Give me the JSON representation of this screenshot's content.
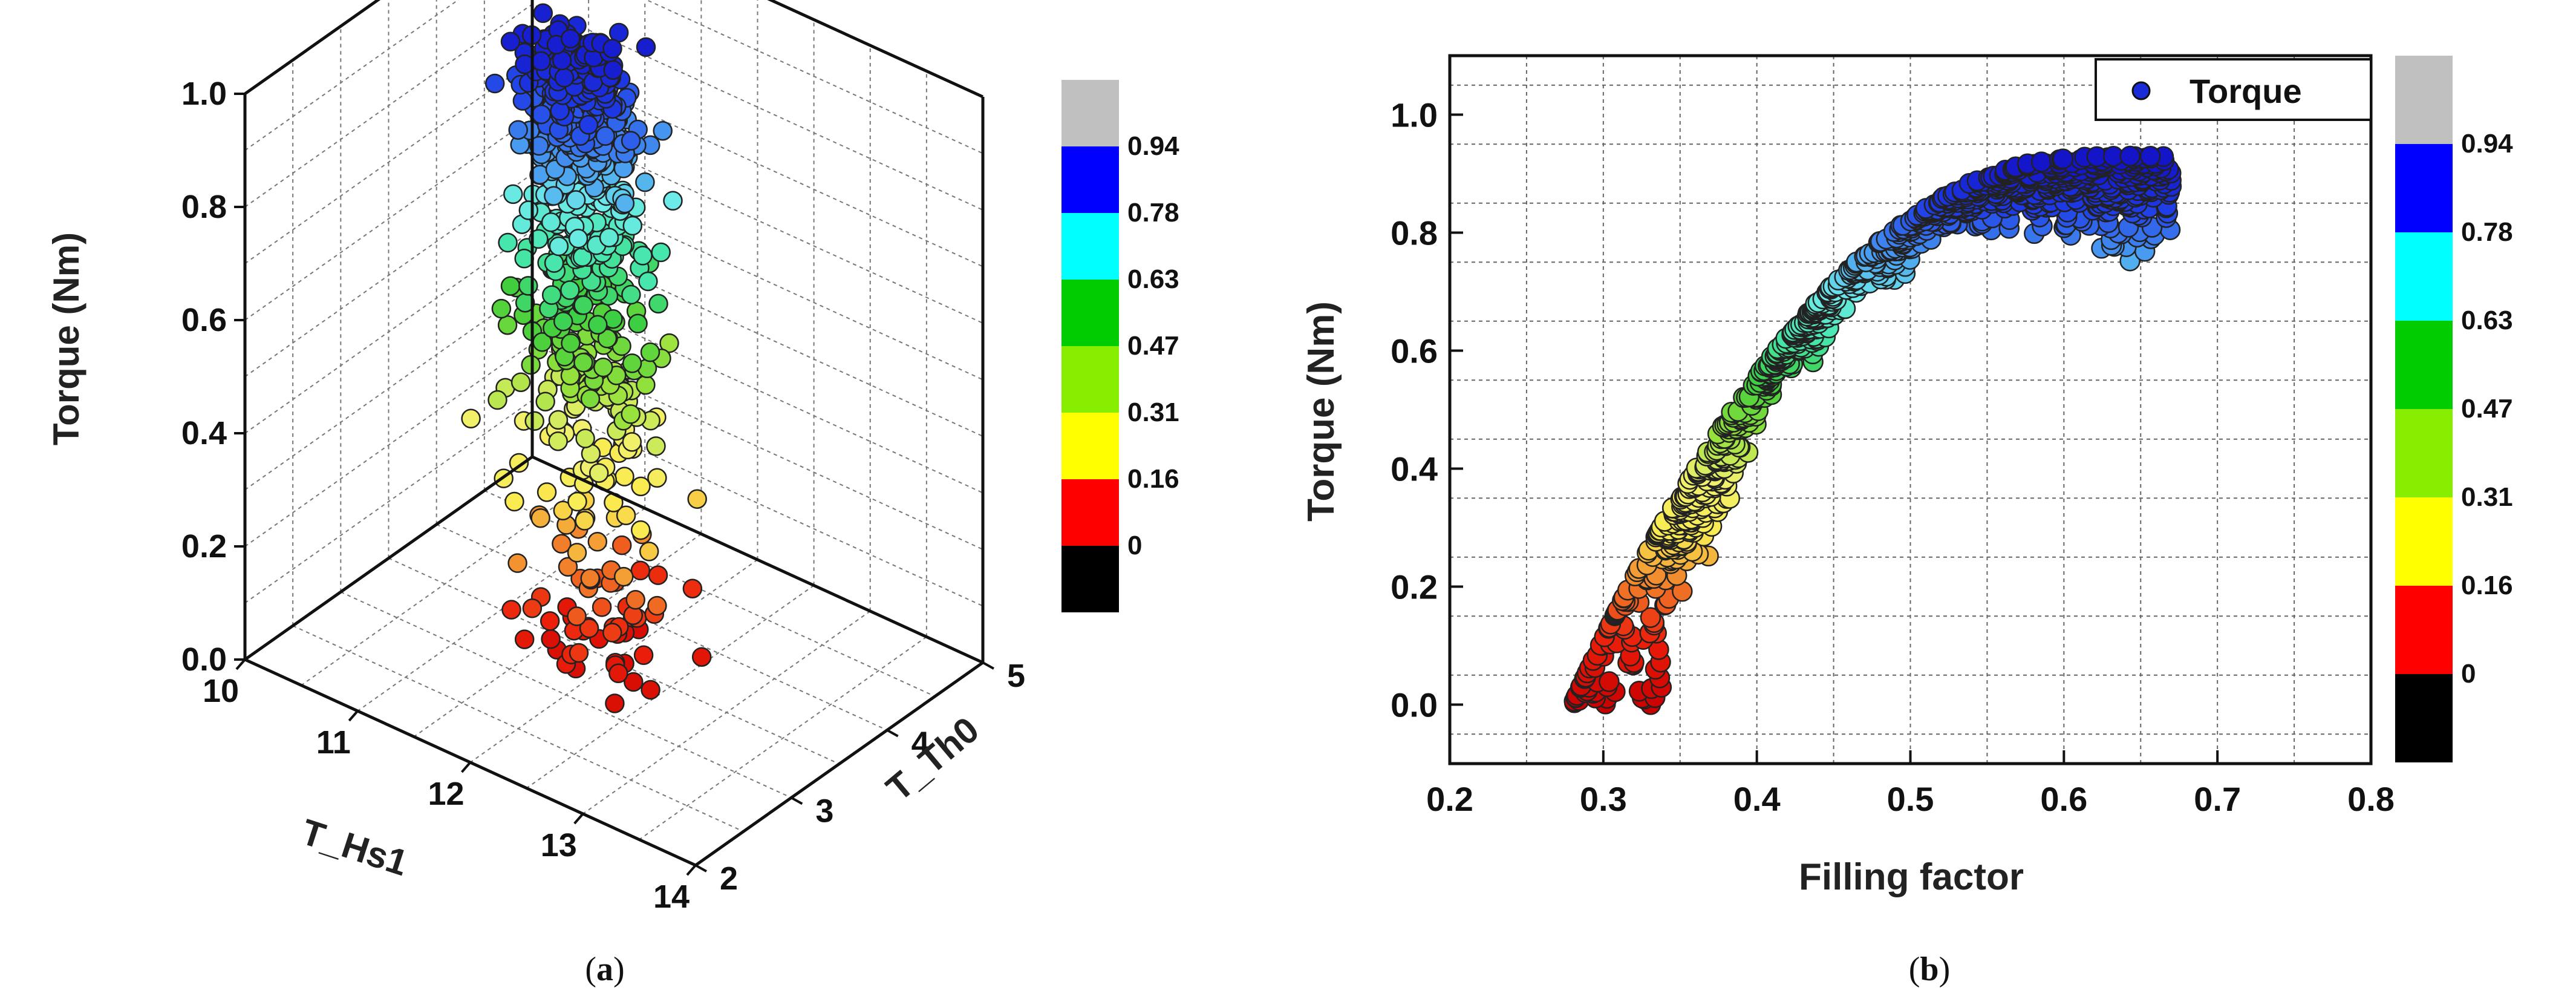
{
  "chart_data": [
    {
      "type": "scatter3d",
      "panel": "(a)",
      "caption_letter": "a",
      "zlabel": "Torque (Nm)",
      "xlabel": "T_Hs1",
      "ylabel": "T_Th0",
      "z_ticks": [
        "0.0",
        "0.2",
        "0.4",
        "0.6",
        "0.8",
        "1.0"
      ],
      "x_ticks": [
        "10",
        "11",
        "12",
        "13",
        "14"
      ],
      "y_ticks": [
        "2",
        "3",
        "4",
        "5"
      ],
      "xlim": [
        10,
        14
      ],
      "ylim": [
        2,
        5
      ],
      "zlim": [
        0,
        1
      ],
      "seed": 7,
      "n_points": 900,
      "colorbar": {
        "labels": [
          "0.94",
          "0.78",
          "0.63",
          "0.47",
          "0.31",
          "0.16",
          "0"
        ],
        "colors": [
          "#c0c0c0",
          "#0000ff",
          "#00ffff",
          "#00cc00",
          "#88ee00",
          "#ffff00",
          "#ff0000",
          "#000000"
        ]
      }
    },
    {
      "type": "scatter",
      "panel": "(b)",
      "caption_letter": "b",
      "xlabel": "Filling factor",
      "ylabel": "Torque (Nm)",
      "legend": "Torque",
      "x_ticks": [
        "0.2",
        "0.3",
        "0.4",
        "0.5",
        "0.6",
        "0.7",
        "0.8"
      ],
      "y_ticks": [
        "0.0",
        "0.2",
        "0.4",
        "0.6",
        "0.8",
        "1.0"
      ],
      "xlim": [
        0.2,
        0.8
      ],
      "ylim": [
        -0.1,
        1.1
      ],
      "seed": 13,
      "n_points": 1100,
      "colorbar": {
        "labels": [
          "0.94",
          "0.78",
          "0.63",
          "0.47",
          "0.31",
          "0.16",
          "0"
        ],
        "colors": [
          "#c0c0c0",
          "#0000ff",
          "#00ffff",
          "#00cc00",
          "#88ee00",
          "#ffff00",
          "#ff0000",
          "#000000"
        ]
      }
    }
  ]
}
